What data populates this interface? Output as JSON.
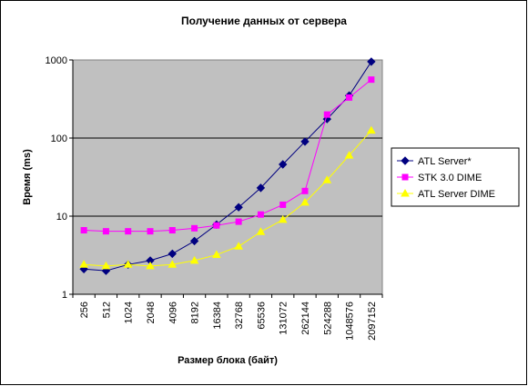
{
  "chart_data": {
    "type": "line",
    "title": "Получение данных от сервера",
    "xlabel": "Размер блока (байт)",
    "ylabel": "Время (ms)",
    "y_scale": "log",
    "ylim": [
      1,
      1000
    ],
    "y_ticks": [
      "1",
      "10",
      "100",
      "1000"
    ],
    "grid": "horizontal major gridlines",
    "legend_position": "right",
    "categories": [
      "256",
      "512",
      "1024",
      "2048",
      "4096",
      "8192",
      "16384",
      "32768",
      "65536",
      "131072",
      "262144",
      "524288",
      "1048576",
      "2097152"
    ],
    "series": [
      {
        "name": "ATL Server*",
        "color": "#000080",
        "marker": "diamond",
        "values": [
          2.1,
          2.0,
          2.4,
          2.7,
          3.3,
          4.8,
          7.8,
          13,
          23,
          46,
          90,
          175,
          350,
          950
        ]
      },
      {
        "name": "STK 3.0 DIME",
        "color": "#FF00FF",
        "marker": "square",
        "values": [
          6.6,
          6.4,
          6.4,
          6.4,
          6.6,
          7.0,
          7.6,
          8.5,
          10.5,
          14,
          21,
          200,
          330,
          560
        ]
      },
      {
        "name": "ATL Server DIME",
        "color": "#FFFF00",
        "marker": "triangle",
        "values": [
          2.4,
          2.3,
          2.4,
          2.3,
          2.4,
          2.7,
          3.2,
          4.1,
          6.3,
          9.0,
          15,
          29,
          60,
          125
        ]
      }
    ],
    "plot_background": "#C0C0C0"
  }
}
